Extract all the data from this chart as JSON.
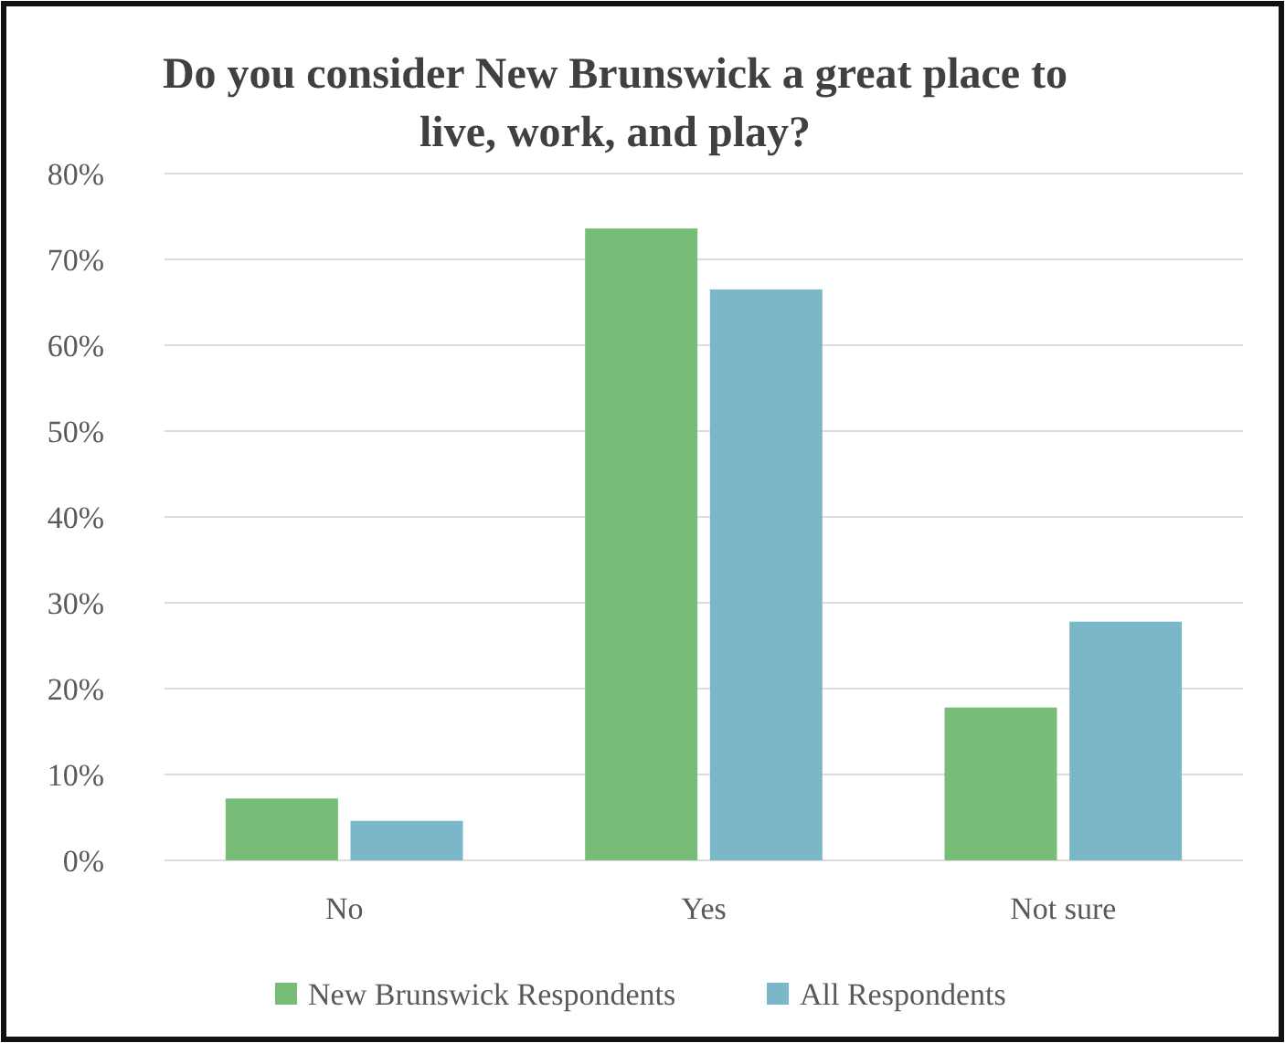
{
  "chart_data": {
    "type": "bar",
    "title": "Do you consider New Brunswick a great place to live, work, and play?",
    "categories": [
      "No",
      "Yes",
      "Not sure"
    ],
    "series": [
      {
        "name": "New Brunswick Respondents",
        "color": "#77bd77",
        "values": [
          7.2,
          73.6,
          17.8
        ]
      },
      {
        "name": "All Respondents",
        "color": "#7ab7c9",
        "values": [
          4.6,
          66.5,
          27.8
        ]
      }
    ],
    "ylim": [
      0,
      80
    ],
    "yticks": [
      {
        "value": 0,
        "label": "0%"
      },
      {
        "value": 10,
        "label": "10%"
      },
      {
        "value": 20,
        "label": "20%"
      },
      {
        "value": 30,
        "label": "30%"
      },
      {
        "value": 40,
        "label": "40%"
      },
      {
        "value": 50,
        "label": "50%"
      },
      {
        "value": 60,
        "label": "60%"
      },
      {
        "value": 70,
        "label": "70%"
      },
      {
        "value": 80,
        "label": "80%"
      }
    ],
    "grid": "y",
    "legend": "bottom"
  }
}
